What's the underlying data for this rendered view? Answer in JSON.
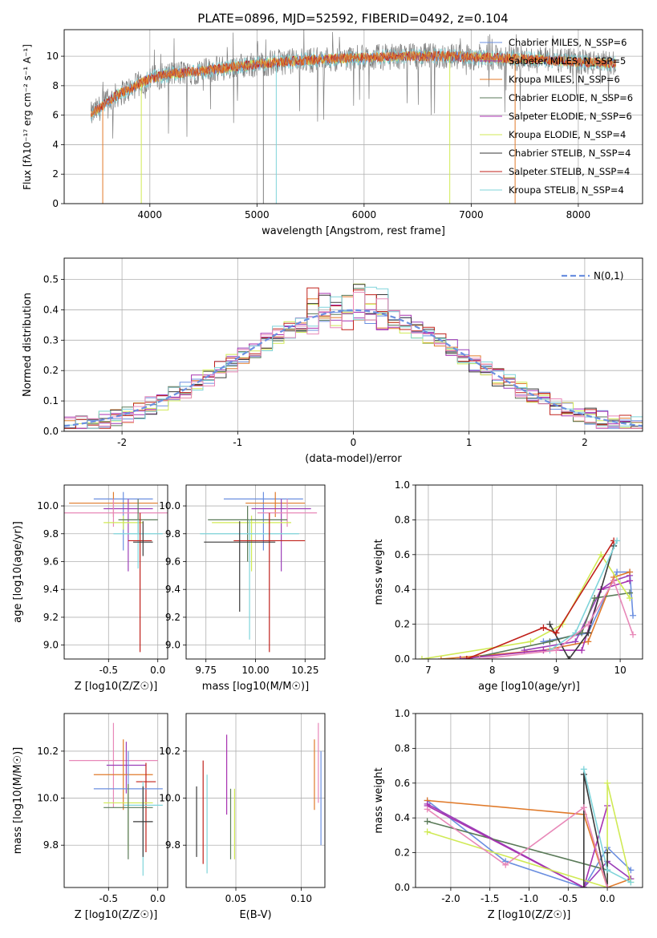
{
  "colors": {
    "chabrier_miles": "#6b8fe0",
    "salpeter_miles": "#9b3fb8",
    "kroupa_miles": "#e07a2a",
    "chabrier_elodie": "#5a7a58",
    "salpeter_elodie": "#a832b0",
    "kroupa_elodie": "#d0ea55",
    "chabrier_stelib": "#3a3a3a",
    "salpeter_stelib": "#c0201a",
    "kroupa_stelib": "#7fd4da",
    "pink": "#e888b8",
    "gray": "#7f7f7f",
    "grid": "#b0b0b0"
  },
  "chart_data": [
    {
      "type": "line",
      "id": "spectrum",
      "title": "PLATE=0896, MJD=52592, FIBERID=0492, z=0.104",
      "xlabel": "wavelength [Angstrom, rest frame]",
      "ylabel": "Flux [fλ10⁻¹⁷ erg cm⁻² s⁻¹ A⁻¹]",
      "xlim": [
        3200,
        8600
      ],
      "ylim": [
        0,
        11.8
      ],
      "xticks": [
        4000,
        5000,
        6000,
        7000,
        8000
      ],
      "yticks": [
        0,
        2,
        4,
        6,
        8,
        10
      ],
      "legend_loc": "right",
      "legend": [
        "Chabrier MILES, N_SSP=6",
        "Salpeter MILES, N_SSP=5",
        "Kroupa MILES, N_SSP=6",
        "Chabrier ELODIE, N_SSP=6",
        "Salpeter ELODIE, N_SSP=6",
        "Kroupa ELODIE, N_SSP=4",
        "Chabrier STELIB, N_SSP=4",
        "Salpeter STELIB, N_SSP=4",
        "Kroupa STELIB, N_SSP=4"
      ],
      "continuum": {
        "x": [
          3450,
          3550,
          3700,
          3850,
          4000,
          4200,
          4500,
          4800,
          5200,
          5600,
          6000,
          6400,
          6800,
          7200,
          7600,
          8000,
          8350
        ],
        "y": [
          6.0,
          6.6,
          7.4,
          7.9,
          8.5,
          8.8,
          9.0,
          9.3,
          9.6,
          9.8,
          9.9,
          10.0,
          10.0,
          9.9,
          9.8,
          9.6,
          9.5
        ]
      },
      "drops": [
        {
          "x": 3560,
          "to": 0,
          "series": "kroupa_miles"
        },
        {
          "x": 3920,
          "to": 0,
          "series": "kroupa_elodie"
        },
        {
          "x": 5060,
          "to": 0,
          "series": "gray"
        },
        {
          "x": 5180,
          "to": 0,
          "series": "kroupa_stelib"
        },
        {
          "x": 6800,
          "to": 0,
          "series": "kroupa_elodie"
        },
        {
          "x": 7410,
          "to": 0,
          "series": "kroupa_miles"
        }
      ]
    },
    {
      "type": "line",
      "id": "residual_histogram",
      "xlabel": "(data-model)/error",
      "ylabel": "Normed distribution",
      "xlim": [
        -2.5,
        2.5
      ],
      "ylim": [
        0,
        0.57
      ],
      "xticks": [
        -2,
        -1,
        0,
        1,
        2
      ],
      "yticks": [
        0.0,
        0.1,
        0.2,
        0.3,
        0.4,
        0.5
      ],
      "legend_loc": "upper right",
      "legend": [
        "N(0,1)"
      ],
      "bin_width": 0.1,
      "gaussian": {
        "mean": 0,
        "sigma": 1
      }
    },
    {
      "type": "scatter",
      "id": "age_vs_Z",
      "xlabel": "Z [log10(Z/Z☉)]",
      "ylabel": "age  [log10(age/yr)]",
      "xlim": [
        -0.95,
        0.1
      ],
      "ylim": [
        8.9,
        10.15
      ],
      "xticks": [
        -0.5,
        0.0
      ],
      "yticks": [
        9.0,
        9.2,
        9.4,
        9.6,
        9.8,
        10.0
      ],
      "points": [
        {
          "series": "chabrier_miles",
          "x": -0.35,
          "xerr": 0.3,
          "y": 10.05,
          "yerr_lo": 0.37,
          "yerr_hi": 0.05
        },
        {
          "series": "kroupa_miles",
          "x": -0.45,
          "xerr": 0.45,
          "y": 10.02,
          "yerr_lo": 0.1,
          "yerr_hi": 0.08
        },
        {
          "series": "salpeter_miles",
          "x": -0.3,
          "xerr": 0.25,
          "y": 9.98,
          "yerr_lo": 0.45,
          "yerr_hi": 0.07
        },
        {
          "series": "pink",
          "x": -0.45,
          "xerr": 0.55,
          "y": 9.95,
          "yerr_lo": 0.1,
          "yerr_hi": 0.1
        },
        {
          "series": "kroupa_elodie",
          "x": -0.35,
          "xerr": 0.2,
          "y": 9.88,
          "yerr_lo": 0.05,
          "yerr_hi": 0.05
        },
        {
          "series": "chabrier_elodie",
          "x": -0.2,
          "xerr": 0.2,
          "y": 9.9,
          "yerr_lo": 0.1,
          "yerr_hi": 0.15
        },
        {
          "series": "kroupa_stelib",
          "x": -0.2,
          "xerr": 0.25,
          "y": 9.8,
          "yerr_lo": 0.25,
          "yerr_hi": 0.1
        },
        {
          "series": "salpeter_stelib",
          "x": -0.18,
          "xerr": 0.12,
          "y": 9.75,
          "yerr_lo": 0.8,
          "yerr_hi": 0.2
        },
        {
          "series": "chabrier_stelib",
          "x": -0.15,
          "xerr": 0.1,
          "y": 9.74,
          "yerr_lo": 0.1,
          "yerr_hi": 0.15
        }
      ]
    },
    {
      "type": "scatter",
      "id": "age_vs_mass",
      "xlabel": "mass [log10(M/M☉)]",
      "ylabel": "",
      "xlim": [
        9.65,
        10.35
      ],
      "ylim": [
        8.9,
        10.15
      ],
      "xticks": [
        9.75,
        10.0,
        10.25
      ],
      "yticks": [
        9.0,
        9.2,
        9.4,
        9.6,
        9.8,
        10.0
      ],
      "points": [
        {
          "series": "chabrier_miles",
          "x": 10.04,
          "xerr": 0.2,
          "y": 10.05,
          "yerr_lo": 0.37,
          "yerr_hi": 0.05
        },
        {
          "series": "kroupa_miles",
          "x": 10.1,
          "xerr": 0.15,
          "y": 10.02,
          "yerr_lo": 0.1,
          "yerr_hi": 0.08
        },
        {
          "series": "salpeter_miles",
          "x": 10.13,
          "xerr": 0.15,
          "y": 9.98,
          "yerr_lo": 0.45,
          "yerr_hi": 0.07
        },
        {
          "series": "pink",
          "x": 10.16,
          "xerr": 0.15,
          "y": 9.95,
          "yerr_lo": 0.1,
          "yerr_hi": 0.1
        },
        {
          "series": "kroupa_elodie",
          "x": 9.98,
          "xerr": 0.2,
          "y": 9.88,
          "yerr_lo": 0.35,
          "yerr_hi": 0.05
        },
        {
          "series": "chabrier_elodie",
          "x": 9.96,
          "xerr": 0.2,
          "y": 9.9,
          "yerr_lo": 0.3,
          "yerr_hi": 0.1
        },
        {
          "series": "kroupa_stelib",
          "x": 9.97,
          "xerr": 0.25,
          "y": 9.8,
          "yerr_lo": 0.76,
          "yerr_hi": 0.1
        },
        {
          "series": "salpeter_stelib",
          "x": 10.07,
          "xerr": 0.18,
          "y": 9.75,
          "yerr_lo": 0.8,
          "yerr_hi": 0.2
        },
        {
          "series": "chabrier_stelib",
          "x": 9.92,
          "xerr": 0.18,
          "y": 9.74,
          "yerr_lo": 0.5,
          "yerr_hi": 0.15
        }
      ]
    },
    {
      "type": "line",
      "id": "mass_weight_vs_age",
      "xlabel": "age  [log10(age/yr)]",
      "ylabel": "mass weight",
      "xlim": [
        6.8,
        10.35
      ],
      "ylim": [
        0,
        1.0
      ],
      "xticks": [
        7,
        8,
        9,
        10
      ],
      "yticks": [
        0.0,
        0.2,
        0.4,
        0.6,
        0.8,
        1.0
      ],
      "series": [
        {
          "key": "chabrier_miles",
          "x": [
            8.8,
            9.5,
            9.95,
            10.15,
            10.2
          ],
          "y": [
            0.1,
            0.15,
            0.5,
            0.5,
            0.25
          ]
        },
        {
          "key": "salpeter_miles",
          "x": [
            8.5,
            9.3,
            9.7,
            9.9,
            10.15
          ],
          "y": [
            0.05,
            0.1,
            0.4,
            0.45,
            0.48
          ]
        },
        {
          "key": "kroupa_miles",
          "x": [
            7.2,
            8.8,
            9.5,
            9.9,
            10.15
          ],
          "y": [
            0.0,
            0.05,
            0.1,
            0.47,
            0.5
          ]
        },
        {
          "key": "chabrier_elodie",
          "x": [
            7.6,
            8.9,
            9.4,
            9.6,
            10.15
          ],
          "y": [
            0.0,
            0.1,
            0.15,
            0.35,
            0.38
          ]
        },
        {
          "key": "salpeter_elodie",
          "x": [
            7.5,
            8.8,
            9.4,
            9.7,
            10.15
          ],
          "y": [
            0.0,
            0.05,
            0.05,
            0.4,
            0.45
          ]
        },
        {
          "key": "kroupa_elodie",
          "x": [
            6.9,
            8.6,
            9.1,
            9.7,
            10.15
          ],
          "y": [
            0.0,
            0.1,
            0.2,
            0.6,
            0.35
          ]
        },
        {
          "key": "chabrier_stelib",
          "x": [
            8.9,
            9.2,
            9.5,
            9.9
          ],
          "y": [
            0.2,
            0.0,
            0.15,
            0.65
          ]
        },
        {
          "key": "salpeter_stelib",
          "x": [
            7.6,
            8.8,
            9.0,
            9.9
          ],
          "y": [
            0.0,
            0.18,
            0.15,
            0.68
          ]
        },
        {
          "key": "kroupa_stelib",
          "x": [
            8.9,
            9.3,
            9.95
          ],
          "y": [
            0.05,
            0.15,
            0.68
          ]
        },
        {
          "key": "pink",
          "x": [
            7.8,
            9.0,
            9.5,
            9.9,
            10.2
          ],
          "y": [
            0.0,
            0.05,
            0.2,
            0.45,
            0.14
          ]
        }
      ]
    },
    {
      "type": "scatter",
      "id": "mass_vs_Z",
      "xlabel": "Z [log10(Z/Z☉)]",
      "ylabel": "mass [log10(M/M☉)]",
      "xlim": [
        -0.95,
        0.1
      ],
      "ylim": [
        9.62,
        10.36
      ],
      "xticks": [
        -0.5,
        0.0
      ],
      "yticks": [
        9.8,
        10.0,
        10.2
      ],
      "points": [
        {
          "series": "pink",
          "x": -0.45,
          "xerr": 0.45,
          "y": 10.16,
          "yerr_lo": 0.2,
          "yerr_hi": 0.16
        },
        {
          "series": "salpeter_miles",
          "x": -0.32,
          "xerr": 0.2,
          "y": 10.14,
          "yerr_lo": 0.12,
          "yerr_hi": 0.1
        },
        {
          "series": "kroupa_miles",
          "x": -0.35,
          "xerr": 0.3,
          "y": 10.1,
          "yerr_lo": 0.15,
          "yerr_hi": 0.15
        },
        {
          "series": "salpeter_stelib",
          "x": -0.12,
          "xerr": 0.1,
          "y": 10.07,
          "yerr_lo": 0.3,
          "yerr_hi": 0.08
        },
        {
          "series": "chabrier_miles",
          "x": -0.3,
          "xerr": 0.35,
          "y": 10.04,
          "yerr_lo": 0.24,
          "yerr_hi": 0.16
        },
        {
          "series": "kroupa_elodie",
          "x": -0.3,
          "xerr": 0.25,
          "y": 9.98,
          "yerr_lo": 0.2,
          "yerr_hi": 0.08
        },
        {
          "series": "kroupa_stelib",
          "x": -0.15,
          "xerr": 0.2,
          "y": 9.97,
          "yerr_lo": 0.3,
          "yerr_hi": 0.1
        },
        {
          "series": "chabrier_elodie",
          "x": -0.3,
          "xerr": 0.25,
          "y": 9.96,
          "yerr_lo": 0.22,
          "yerr_hi": 0.1
        },
        {
          "series": "chabrier_stelib",
          "x": -0.15,
          "xerr": 0.1,
          "y": 9.9,
          "yerr_lo": 0.15,
          "yerr_hi": 0.15
        }
      ]
    },
    {
      "type": "scatter",
      "id": "mass_vs_ebv",
      "xlabel": "E(B-V)",
      "ylabel": "",
      "xlim": [
        0.012,
        0.118
      ],
      "ylim": [
        9.62,
        10.36
      ],
      "xticks": [
        0.05,
        0.1
      ],
      "yticks": [
        9.8,
        10.0,
        10.2
      ],
      "points": [
        {
          "series": "chabrier_stelib",
          "x": 0.02,
          "y": 9.9,
          "yerr_lo": 0.15,
          "yerr_hi": 0.15
        },
        {
          "series": "salpeter_stelib",
          "x": 0.025,
          "y": 10.0,
          "yerr_lo": 0.28,
          "yerr_hi": 0.16
        },
        {
          "series": "kroupa_stelib",
          "x": 0.028,
          "y": 9.9,
          "yerr_lo": 0.22,
          "yerr_hi": 0.2
        },
        {
          "series": "salpeter_elodie",
          "x": 0.043,
          "y": 10.1,
          "yerr_lo": 0.17,
          "yerr_hi": 0.17
        },
        {
          "series": "chabrier_elodie",
          "x": 0.046,
          "y": 9.9,
          "yerr_lo": 0.16,
          "yerr_hi": 0.14
        },
        {
          "series": "kroupa_elodie",
          "x": 0.049,
          "y": 9.9,
          "yerr_lo": 0.16,
          "yerr_hi": 0.14
        },
        {
          "series": "kroupa_miles",
          "x": 0.11,
          "y": 10.1,
          "yerr_lo": 0.15,
          "yerr_hi": 0.15
        },
        {
          "series": "pink",
          "x": 0.113,
          "y": 10.15,
          "yerr_lo": 0.17,
          "yerr_hi": 0.17
        },
        {
          "series": "chabrier_miles",
          "x": 0.115,
          "y": 10.0,
          "yerr_lo": 0.2,
          "yerr_hi": 0.2
        }
      ]
    },
    {
      "type": "line",
      "id": "mass_weight_vs_Z",
      "xlabel": "Z [log10(Z/Z☉)]",
      "ylabel": "mass weight",
      "xlim": [
        -2.45,
        0.45
      ],
      "ylim": [
        0,
        1.0
      ],
      "xticks": [
        -2.0,
        -1.5,
        -1.0,
        -0.5,
        0.0
      ],
      "yticks": [
        0.0,
        0.2,
        0.4,
        0.6,
        0.8,
        1.0
      ],
      "series": [
        {
          "key": "chabrier_miles",
          "x": [
            -2.3,
            -1.3,
            -0.3,
            0.0,
            0.3
          ],
          "y": [
            0.5,
            0.15,
            0.0,
            0.23,
            0.1
          ]
        },
        {
          "key": "kroupa_miles",
          "x": [
            -2.3,
            -0.3,
            0.0,
            0.3
          ],
          "y": [
            0.5,
            0.42,
            0.0,
            0.05
          ]
        },
        {
          "key": "salpeter_miles",
          "x": [
            -2.3,
            -0.3,
            0.0,
            0.3
          ],
          "y": [
            0.48,
            0.0,
            0.15,
            0.05
          ]
        },
        {
          "key": "chabrier_elodie",
          "x": [
            -2.3,
            0.0
          ],
          "y": [
            0.38,
            0.1
          ]
        },
        {
          "key": "salpeter_elodie",
          "x": [
            -2.3,
            -0.3,
            0.0
          ],
          "y": [
            0.47,
            0.0,
            0.47
          ]
        },
        {
          "key": "kroupa_elodie",
          "x": [
            -2.3,
            0.0,
            0.0,
            0.3
          ],
          "y": [
            0.32,
            0.0,
            0.6,
            0.03
          ]
        },
        {
          "key": "chabrier_stelib",
          "x": [
            -0.3,
            -0.3,
            0.0,
            0.0
          ],
          "y": [
            0.0,
            0.65,
            0.0,
            0.2
          ]
        },
        {
          "key": "kroupa_stelib",
          "x": [
            -0.3,
            0.0,
            0.3
          ],
          "y": [
            0.68,
            0.1,
            0.03
          ]
        },
        {
          "key": "pink",
          "x": [
            -2.3,
            -1.3,
            -0.3,
            0.0
          ],
          "y": [
            0.45,
            0.13,
            0.46,
            0.0
          ]
        }
      ]
    }
  ]
}
